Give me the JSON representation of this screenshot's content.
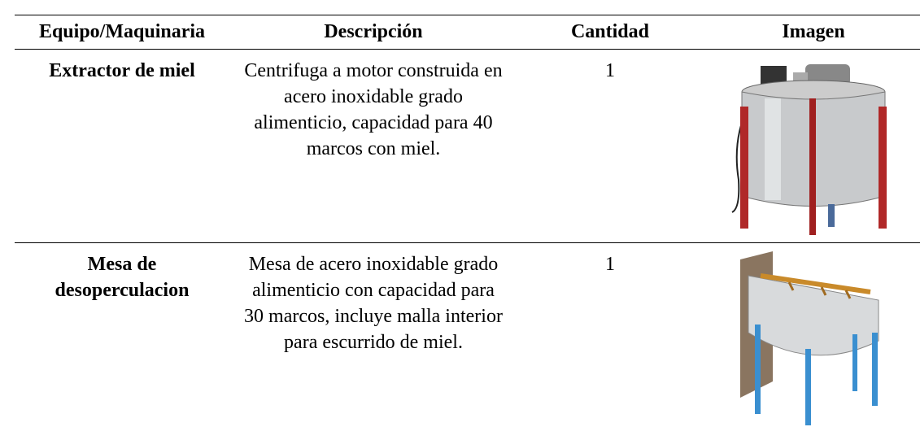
{
  "table": {
    "header": [
      "Equipo/Maquinaria",
      "Descripción",
      "Cantidad",
      "Imagen"
    ],
    "rows": [
      [
        "Extractor de miel",
        "Centrifuga a motor construida en acero inoxidable grado alimenticio, capacidad para 40 marcos con miel.",
        "1"
      ],
      [
        "Mesa de desoperculacion",
        "Mesa de acero inoxidable grado alimenticio con capacidad para 30 marcos, incluye malla interior para escurrido de miel.",
        "1"
      ]
    ]
  }
}
